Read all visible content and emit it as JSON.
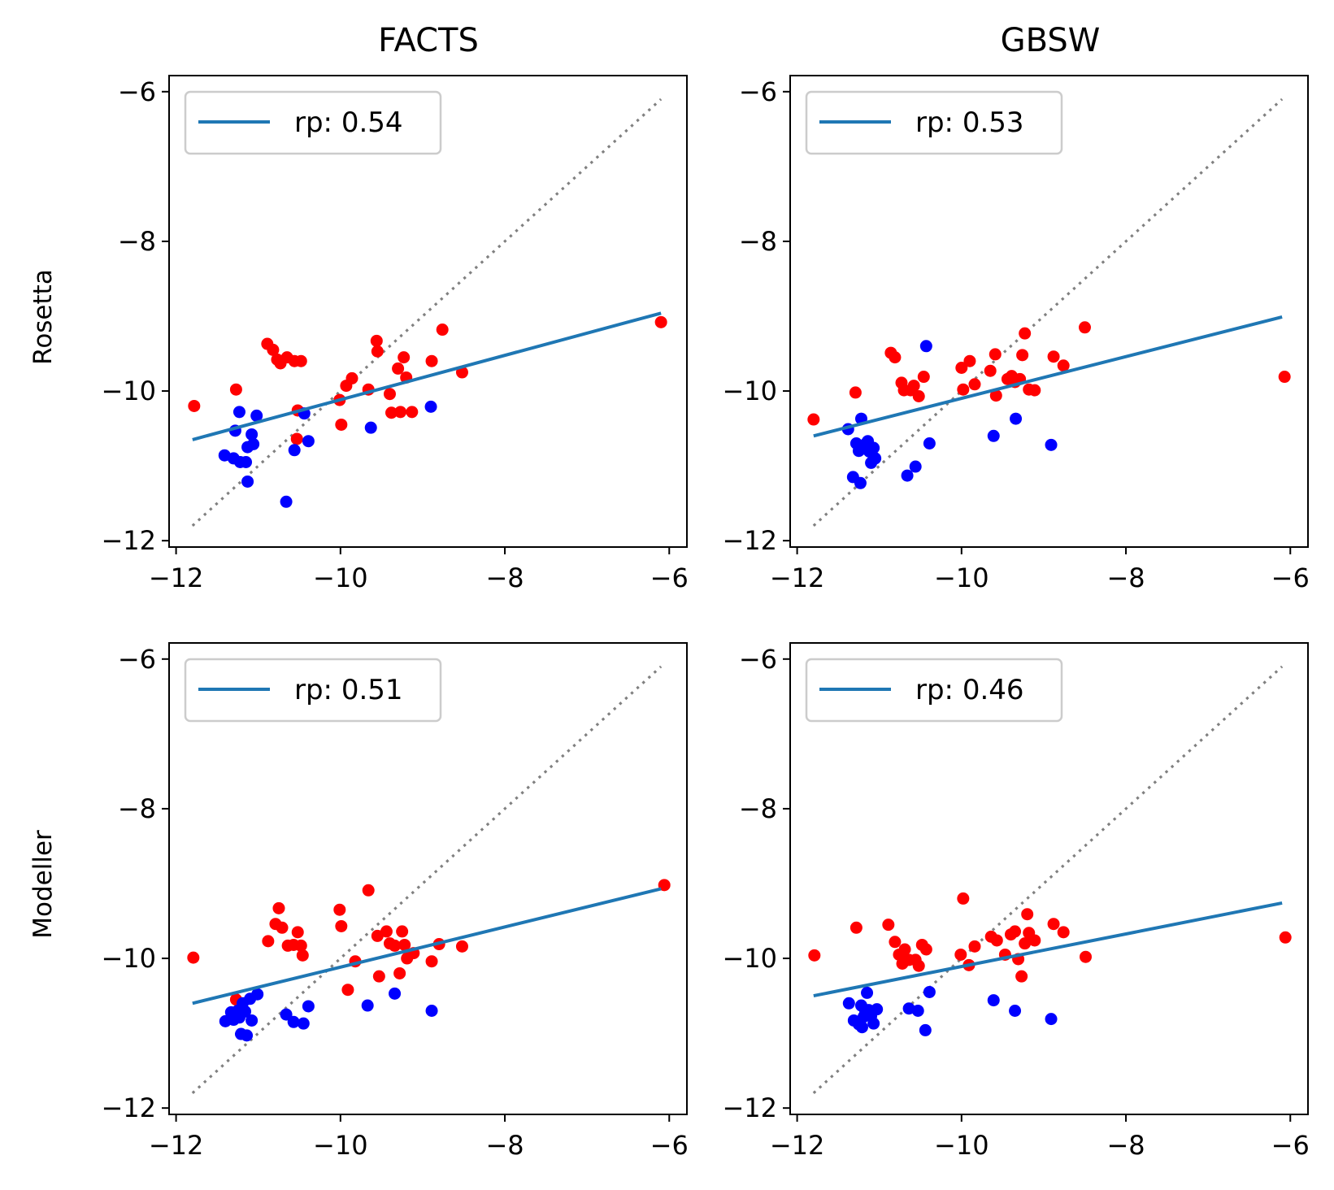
{
  "figure": {
    "column_titles": [
      "FACTS",
      "GBSW"
    ],
    "row_labels": [
      "Rosetta",
      "Modeller"
    ]
  },
  "colors": {
    "fit_line": "#1f77b4",
    "identity_line": "#808080",
    "group_red": "#ff0000",
    "group_blue": "#0000ff",
    "legend_border": "#cccccc"
  },
  "chart_data": [
    {
      "type": "scatter",
      "title": "FACTS",
      "ylabel": "Rosetta",
      "xlim": [
        -12,
        -6
      ],
      "ylim": [
        -12,
        -6
      ],
      "xticks": [
        -12,
        -10,
        -8,
        -6
      ],
      "yticks": [
        -12,
        -10,
        -8,
        -6
      ],
      "xtick_labels": [
        "−12",
        "−10",
        "−8",
        "−6"
      ],
      "ytick_labels": [
        "−12",
        "−10",
        "−8",
        "−6"
      ],
      "legend": {
        "label": "rp: 0.54",
        "placement": "upper-left"
      },
      "fit_line": {
        "x": [
          -11.8,
          -6.1
        ],
        "y": [
          -10.65,
          -8.96
        ]
      },
      "identity_line": {
        "x": [
          -11.8,
          -6.1
        ],
        "y": [
          -11.8,
          -6.1
        ]
      },
      "series": [
        {
          "color": "red",
          "points": [
            [
              -11.78,
              -10.2
            ],
            [
              -11.27,
              -9.98
            ],
            [
              -10.89,
              -9.37
            ],
            [
              -10.82,
              -9.45
            ],
            [
              -10.77,
              -9.58
            ],
            [
              -10.73,
              -9.63
            ],
            [
              -10.65,
              -9.55
            ],
            [
              -10.56,
              -9.6
            ],
            [
              -10.48,
              -9.6
            ],
            [
              -10.52,
              -10.26
            ],
            [
              -10.53,
              -10.64
            ],
            [
              -10.01,
              -10.12
            ],
            [
              -9.99,
              -10.45
            ],
            [
              -9.93,
              -9.93
            ],
            [
              -9.86,
              -9.83
            ],
            [
              -9.66,
              -9.98
            ],
            [
              -9.56,
              -9.33
            ],
            [
              -9.55,
              -9.47
            ],
            [
              -9.4,
              -10.04
            ],
            [
              -9.38,
              -10.29
            ],
            [
              -9.3,
              -9.7
            ],
            [
              -9.27,
              -10.28
            ],
            [
              -9.23,
              -9.55
            ],
            [
              -9.2,
              -9.82
            ],
            [
              -9.13,
              -10.28
            ],
            [
              -8.89,
              -9.6
            ],
            [
              -8.76,
              -9.18
            ],
            [
              -8.52,
              -9.75
            ],
            [
              -6.1,
              -9.08
            ]
          ]
        },
        {
          "color": "blue",
          "points": [
            [
              -11.41,
              -10.86
            ],
            [
              -11.3,
              -10.9
            ],
            [
              -11.28,
              -10.53
            ],
            [
              -11.23,
              -10.28
            ],
            [
              -11.22,
              -10.95
            ],
            [
              -11.15,
              -10.95
            ],
            [
              -11.13,
              -10.75
            ],
            [
              -11.13,
              -11.21
            ],
            [
              -11.08,
              -10.58
            ],
            [
              -11.06,
              -10.71
            ],
            [
              -11.02,
              -10.33
            ],
            [
              -10.66,
              -11.48
            ],
            [
              -10.56,
              -10.79
            ],
            [
              -10.44,
              -10.3
            ],
            [
              -10.39,
              -10.67
            ],
            [
              -9.63,
              -10.49
            ],
            [
              -8.9,
              -10.21
            ]
          ]
        }
      ]
    },
    {
      "type": "scatter",
      "title": "GBSW",
      "ylabel": "",
      "xlim": [
        -12,
        -6
      ],
      "ylim": [
        -12,
        -6
      ],
      "xticks": [
        -12,
        -10,
        -8,
        -6
      ],
      "yticks": [
        -12,
        -10,
        -8,
        -6
      ],
      "xtick_labels": [
        "−12",
        "−10",
        "−8",
        "−6"
      ],
      "ytick_labels": [
        "−12",
        "−10",
        "−8",
        "−6"
      ],
      "legend": {
        "label": "rp: 0.53",
        "placement": "upper-left"
      },
      "fit_line": {
        "x": [
          -11.8,
          -6.1
        ],
        "y": [
          -10.6,
          -9.01
        ]
      },
      "identity_line": {
        "x": [
          -11.8,
          -6.1
        ],
        "y": [
          -11.8,
          -6.1
        ]
      },
      "series": [
        {
          "color": "red",
          "points": [
            [
              -11.8,
              -10.38
            ],
            [
              -11.29,
              -10.02
            ],
            [
              -10.86,
              -9.49
            ],
            [
              -10.81,
              -9.55
            ],
            [
              -10.73,
              -9.89
            ],
            [
              -10.7,
              -9.99
            ],
            [
              -10.62,
              -9.99
            ],
            [
              -10.58,
              -9.93
            ],
            [
              -10.52,
              -10.07
            ],
            [
              -10.46,
              -9.81
            ],
            [
              -10.0,
              -9.69
            ],
            [
              -9.98,
              -9.98
            ],
            [
              -9.9,
              -9.6
            ],
            [
              -9.84,
              -9.91
            ],
            [
              -9.65,
              -9.73
            ],
            [
              -9.59,
              -9.51
            ],
            [
              -9.58,
              -10.06
            ],
            [
              -9.44,
              -9.84
            ],
            [
              -9.39,
              -9.8
            ],
            [
              -9.35,
              -9.88
            ],
            [
              -9.29,
              -9.84
            ],
            [
              -9.26,
              -9.52
            ],
            [
              -9.23,
              -9.23
            ],
            [
              -9.18,
              -9.98
            ],
            [
              -9.11,
              -9.99
            ],
            [
              -8.88,
              -9.54
            ],
            [
              -8.76,
              -9.66
            ],
            [
              -8.5,
              -9.15
            ],
            [
              -6.07,
              -9.81
            ]
          ]
        },
        {
          "color": "blue",
          "points": [
            [
              -11.38,
              -10.51
            ],
            [
              -11.32,
              -11.15
            ],
            [
              -11.28,
              -10.7
            ],
            [
              -11.25,
              -10.8
            ],
            [
              -11.23,
              -10.73
            ],
            [
              -11.23,
              -11.23
            ],
            [
              -11.22,
              -10.37
            ],
            [
              -11.18,
              -10.77
            ],
            [
              -11.16,
              -10.7
            ],
            [
              -11.14,
              -10.67
            ],
            [
              -11.12,
              -10.81
            ],
            [
              -11.1,
              -10.96
            ],
            [
              -11.07,
              -10.76
            ],
            [
              -11.05,
              -10.9
            ],
            [
              -10.66,
              -11.13
            ],
            [
              -10.56,
              -11.01
            ],
            [
              -10.43,
              -9.4
            ],
            [
              -10.39,
              -10.7
            ],
            [
              -9.61,
              -10.6
            ],
            [
              -9.34,
              -10.37
            ],
            [
              -8.91,
              -10.72
            ]
          ]
        }
      ]
    },
    {
      "type": "scatter",
      "title": "",
      "ylabel": "Modeller",
      "xlim": [
        -12,
        -6
      ],
      "ylim": [
        -12,
        -6
      ],
      "xticks": [
        -12,
        -10,
        -8,
        -6
      ],
      "yticks": [
        -12,
        -10,
        -8,
        -6
      ],
      "xtick_labels": [
        "−12",
        "−10",
        "−8",
        "−6"
      ],
      "ytick_labels": [
        "−12",
        "−10",
        "−8",
        "−6"
      ],
      "legend": {
        "label": "rp: 0.51",
        "placement": "upper-left"
      },
      "fit_line": {
        "x": [
          -11.8,
          -6.1
        ],
        "y": [
          -10.6,
          -9.07
        ]
      },
      "identity_line": {
        "x": [
          -11.8,
          -6.1
        ],
        "y": [
          -11.8,
          -6.1
        ]
      },
      "series": [
        {
          "color": "red",
          "points": [
            [
              -11.79,
              -9.99
            ],
            [
              -11.27,
              -10.55
            ],
            [
              -10.88,
              -9.77
            ],
            [
              -10.79,
              -9.54
            ],
            [
              -10.75,
              -9.33
            ],
            [
              -10.71,
              -9.59
            ],
            [
              -10.64,
              -9.83
            ],
            [
              -10.57,
              -9.82
            ],
            [
              -10.52,
              -9.65
            ],
            [
              -10.48,
              -9.83
            ],
            [
              -10.46,
              -9.96
            ],
            [
              -10.01,
              -9.35
            ],
            [
              -9.99,
              -9.57
            ],
            [
              -9.91,
              -10.42
            ],
            [
              -9.82,
              -10.04
            ],
            [
              -9.66,
              -9.09
            ],
            [
              -9.55,
              -9.7
            ],
            [
              -9.53,
              -10.24
            ],
            [
              -9.44,
              -9.64
            ],
            [
              -9.4,
              -9.8
            ],
            [
              -9.34,
              -9.83
            ],
            [
              -9.28,
              -10.2
            ],
            [
              -9.25,
              -9.64
            ],
            [
              -9.22,
              -9.82
            ],
            [
              -9.19,
              -10.0
            ],
            [
              -9.11,
              -9.93
            ],
            [
              -8.89,
              -10.04
            ],
            [
              -8.8,
              -9.81
            ],
            [
              -8.52,
              -9.84
            ],
            [
              -6.06,
              -9.02
            ]
          ]
        },
        {
          "color": "blue",
          "points": [
            [
              -11.4,
              -10.84
            ],
            [
              -11.33,
              -10.72
            ],
            [
              -11.3,
              -10.82
            ],
            [
              -11.25,
              -10.7
            ],
            [
              -11.23,
              -10.79
            ],
            [
              -11.21,
              -11.01
            ],
            [
              -11.19,
              -10.6
            ],
            [
              -11.16,
              -10.71
            ],
            [
              -11.14,
              -11.03
            ],
            [
              -11.1,
              -10.54
            ],
            [
              -11.08,
              -10.83
            ],
            [
              -11.01,
              -10.48
            ],
            [
              -10.66,
              -10.75
            ],
            [
              -10.57,
              -10.85
            ],
            [
              -10.45,
              -10.87
            ],
            [
              -10.39,
              -10.64
            ],
            [
              -9.67,
              -10.63
            ],
            [
              -9.34,
              -10.47
            ],
            [
              -8.89,
              -10.7
            ]
          ]
        }
      ]
    },
    {
      "type": "scatter",
      "title": "",
      "ylabel": "",
      "xlim": [
        -12,
        -6
      ],
      "ylim": [
        -12,
        -6
      ],
      "xticks": [
        -12,
        -10,
        -8,
        -6
      ],
      "yticks": [
        -12,
        -10,
        -8,
        -6
      ],
      "xtick_labels": [
        "−12",
        "−10",
        "−8",
        "−6"
      ],
      "ytick_labels": [
        "−12",
        "−10",
        "−8",
        "−6"
      ],
      "legend": {
        "label": "rp: 0.46",
        "placement": "upper-left"
      },
      "fit_line": {
        "x": [
          -11.8,
          -6.1
        ],
        "y": [
          -10.5,
          -9.26
        ]
      },
      "identity_line": {
        "x": [
          -11.8,
          -6.1
        ],
        "y": [
          -11.8,
          -6.1
        ]
      },
      "series": [
        {
          "color": "red",
          "points": [
            [
              -11.79,
              -9.96
            ],
            [
              -11.28,
              -9.59
            ],
            [
              -10.89,
              -9.55
            ],
            [
              -10.81,
              -9.78
            ],
            [
              -10.76,
              -9.95
            ],
            [
              -10.72,
              -10.07
            ],
            [
              -10.69,
              -9.88
            ],
            [
              -10.64,
              -10.02
            ],
            [
              -10.56,
              -10.02
            ],
            [
              -10.52,
              -10.1
            ],
            [
              -10.48,
              -9.82
            ],
            [
              -10.43,
              -9.88
            ],
            [
              -10.01,
              -9.95
            ],
            [
              -9.98,
              -9.2
            ],
            [
              -9.91,
              -10.09
            ],
            [
              -9.84,
              -9.84
            ],
            [
              -9.64,
              -9.71
            ],
            [
              -9.57,
              -9.76
            ],
            [
              -9.47,
              -9.95
            ],
            [
              -9.4,
              -9.68
            ],
            [
              -9.35,
              -9.64
            ],
            [
              -9.31,
              -10.01
            ],
            [
              -9.27,
              -10.24
            ],
            [
              -9.23,
              -9.8
            ],
            [
              -9.2,
              -9.41
            ],
            [
              -9.18,
              -9.66
            ],
            [
              -9.11,
              -9.76
            ],
            [
              -8.88,
              -9.54
            ],
            [
              -8.76,
              -9.65
            ],
            [
              -8.49,
              -9.98
            ],
            [
              -6.06,
              -9.72
            ]
          ]
        },
        {
          "color": "blue",
          "points": [
            [
              -11.37,
              -10.6
            ],
            [
              -11.31,
              -10.83
            ],
            [
              -11.25,
              -10.88
            ],
            [
              -11.22,
              -10.63
            ],
            [
              -11.21,
              -10.92
            ],
            [
              -11.19,
              -10.78
            ],
            [
              -11.17,
              -10.72
            ],
            [
              -11.15,
              -10.46
            ],
            [
              -11.13,
              -10.69
            ],
            [
              -11.1,
              -10.77
            ],
            [
              -11.07,
              -10.87
            ],
            [
              -11.03,
              -10.68
            ],
            [
              -10.64,
              -10.67
            ],
            [
              -10.53,
              -10.7
            ],
            [
              -10.44,
              -10.96
            ],
            [
              -10.39,
              -10.45
            ],
            [
              -9.61,
              -10.56
            ],
            [
              -9.35,
              -10.7
            ],
            [
              -8.91,
              -10.81
            ]
          ]
        }
      ]
    }
  ]
}
